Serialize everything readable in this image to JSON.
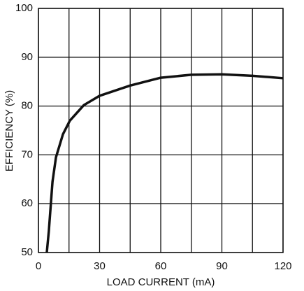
{
  "chart_data": {
    "type": "line",
    "x_label": "LOAD CURRENT (mA)",
    "y_label": "EFFICIENCY (%)",
    "xlim": [
      0,
      120
    ],
    "xticks": [
      0,
      30,
      60,
      90,
      120
    ],
    "xminor": [
      15,
      45,
      75,
      105
    ],
    "ylim": [
      50,
      100
    ],
    "yticks": [
      50,
      60,
      70,
      80,
      90,
      100
    ],
    "grid": true,
    "series": [
      {
        "color": "#111111",
        "x": [
          4.1,
          5.1,
          6.9,
          8.6,
          12,
          15.4,
          22.3,
          30,
          45,
          60,
          75,
          90,
          105,
          120
        ],
        "values": [
          50,
          54.4,
          64.5,
          69.5,
          74.2,
          77,
          80.2,
          82.1,
          84.2,
          85.8,
          86.4,
          86.5,
          86.2,
          85.7
        ]
      }
    ]
  }
}
